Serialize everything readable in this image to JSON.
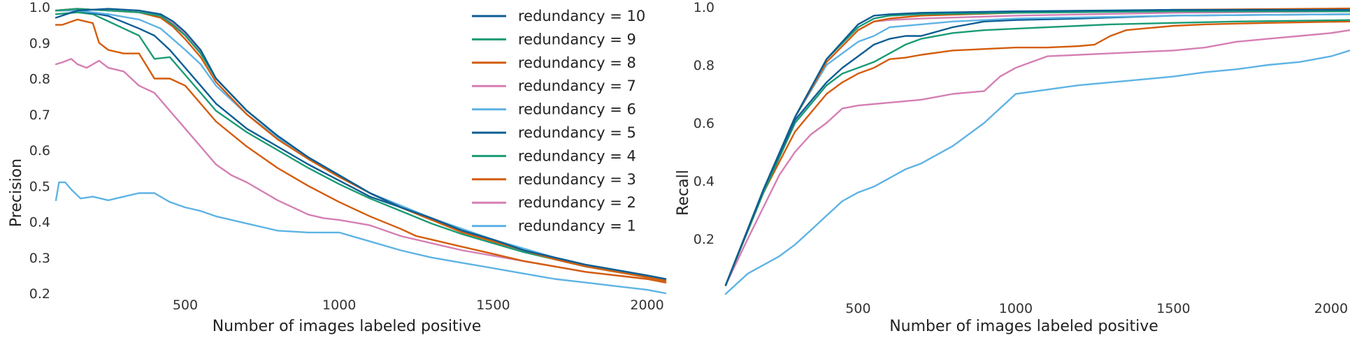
{
  "chart_data": [
    {
      "type": "line",
      "xlabel": "Number of images labeled positive",
      "ylabel": "Precision",
      "xlim": [
        80,
        2060
      ],
      "ylim": [
        0.2,
        1.0
      ],
      "xticks": [
        500,
        1000,
        1500,
        2000
      ],
      "yticks": [
        0.2,
        0.3,
        0.4,
        0.5,
        0.6,
        0.7,
        0.8,
        0.9,
        1.0
      ],
      "grid": false,
      "legend_position": "top-right",
      "series": [
        {
          "name": "redundancy = 10",
          "color": "#0b5d94",
          "x": [
            80,
            150,
            250,
            350,
            420,
            460,
            500,
            550,
            600,
            700,
            800,
            900,
            1000,
            1100,
            1200,
            1300,
            1400,
            1500,
            1600,
            1700,
            1800,
            1900,
            2000,
            2060
          ],
          "y": [
            0.97,
            0.99,
            0.995,
            0.99,
            0.98,
            0.96,
            0.93,
            0.88,
            0.8,
            0.71,
            0.64,
            0.58,
            0.53,
            0.48,
            0.44,
            0.41,
            0.375,
            0.35,
            0.32,
            0.3,
            0.28,
            0.265,
            0.25,
            0.24
          ]
        },
        {
          "name": "redundancy = 9",
          "color": "#1a9b74",
          "x": [
            80,
            150,
            250,
            350,
            420,
            460,
            500,
            550,
            600,
            700,
            800,
            900,
            1000,
            1100,
            1200,
            1300,
            1400,
            1500,
            1600,
            1700,
            1800,
            1900,
            2000,
            2060
          ],
          "y": [
            0.99,
            0.995,
            0.99,
            0.985,
            0.975,
            0.95,
            0.92,
            0.87,
            0.8,
            0.71,
            0.64,
            0.58,
            0.53,
            0.48,
            0.44,
            0.41,
            0.375,
            0.35,
            0.32,
            0.3,
            0.28,
            0.265,
            0.25,
            0.24
          ]
        },
        {
          "name": "redundancy = 8",
          "color": "#d45c0a",
          "x": [
            80,
            150,
            250,
            350,
            420,
            460,
            500,
            550,
            600,
            700,
            800,
            900,
            1000,
            1100,
            1200,
            1300,
            1400,
            1500,
            1600,
            1700,
            1800,
            1900,
            2000,
            2060
          ],
          "y": [
            0.99,
            0.995,
            0.99,
            0.985,
            0.97,
            0.945,
            0.91,
            0.86,
            0.79,
            0.7,
            0.63,
            0.575,
            0.525,
            0.48,
            0.44,
            0.405,
            0.37,
            0.345,
            0.32,
            0.295,
            0.275,
            0.26,
            0.245,
            0.235
          ]
        },
        {
          "name": "redundancy = 7",
          "color": "#d57fb4",
          "x": [
            80,
            150,
            250,
            350,
            420,
            460,
            500,
            550,
            600,
            700,
            800,
            900,
            1000,
            1100,
            1200,
            1300,
            1400,
            1500,
            1600,
            1700,
            1800,
            1900,
            2000,
            2060
          ],
          "y": [
            0.99,
            0.995,
            0.99,
            0.985,
            0.975,
            0.955,
            0.925,
            0.875,
            0.8,
            0.71,
            0.64,
            0.58,
            0.53,
            0.48,
            0.44,
            0.41,
            0.375,
            0.35,
            0.32,
            0.3,
            0.28,
            0.265,
            0.25,
            0.24
          ]
        },
        {
          "name": "redundancy = 6",
          "color": "#5eb3e4",
          "x": [
            80,
            150,
            250,
            350,
            420,
            460,
            500,
            550,
            600,
            700,
            800,
            900,
            1000,
            1100,
            1200,
            1300,
            1400,
            1500,
            1600,
            1700,
            1800,
            1900,
            2000,
            2060
          ],
          "y": [
            0.99,
            0.99,
            0.98,
            0.965,
            0.94,
            0.91,
            0.88,
            0.84,
            0.78,
            0.7,
            0.635,
            0.58,
            0.53,
            0.48,
            0.445,
            0.41,
            0.38,
            0.35,
            0.325,
            0.3,
            0.28,
            0.265,
            0.25,
            0.24
          ]
        },
        {
          "name": "redundancy = 5",
          "color": "#0b5d94",
          "x": [
            80,
            150,
            250,
            350,
            400,
            450,
            500,
            550,
            600,
            700,
            800,
            900,
            1000,
            1100,
            1200,
            1300,
            1400,
            1500,
            1600,
            1700,
            1800,
            1900,
            2000,
            2060
          ],
          "y": [
            0.99,
            0.99,
            0.975,
            0.94,
            0.92,
            0.88,
            0.83,
            0.78,
            0.73,
            0.66,
            0.61,
            0.56,
            0.515,
            0.47,
            0.44,
            0.405,
            0.375,
            0.345,
            0.32,
            0.3,
            0.28,
            0.265,
            0.25,
            0.24
          ]
        },
        {
          "name": "redundancy = 4",
          "color": "#1a9b74",
          "x": [
            80,
            150,
            200,
            250,
            300,
            350,
            400,
            450,
            500,
            550,
            600,
            700,
            800,
            900,
            1000,
            1100,
            1200,
            1300,
            1400,
            1500,
            1600,
            1700,
            1800,
            1900,
            2000,
            2060
          ],
          "y": [
            0.98,
            0.985,
            0.98,
            0.96,
            0.94,
            0.92,
            0.855,
            0.86,
            0.81,
            0.76,
            0.71,
            0.65,
            0.6,
            0.55,
            0.505,
            0.465,
            0.43,
            0.395,
            0.365,
            0.34,
            0.315,
            0.295,
            0.275,
            0.26,
            0.245,
            0.235
          ]
        },
        {
          "name": "redundancy = 3",
          "color": "#d45c0a",
          "x": [
            80,
            100,
            150,
            200,
            220,
            250,
            300,
            350,
            400,
            450,
            500,
            550,
            600,
            700,
            800,
            900,
            1000,
            1100,
            1200,
            1250,
            1300,
            1400,
            1500,
            1600,
            1700,
            1800,
            1900,
            2000,
            2060
          ],
          "y": [
            0.95,
            0.95,
            0.965,
            0.955,
            0.9,
            0.88,
            0.87,
            0.87,
            0.8,
            0.8,
            0.78,
            0.73,
            0.68,
            0.61,
            0.55,
            0.5,
            0.455,
            0.415,
            0.38,
            0.36,
            0.35,
            0.33,
            0.31,
            0.29,
            0.275,
            0.26,
            0.25,
            0.24,
            0.23
          ]
        },
        {
          "name": "redundancy = 2",
          "color": "#d57fb4",
          "x": [
            80,
            100,
            130,
            150,
            180,
            220,
            250,
            300,
            350,
            400,
            450,
            500,
            550,
            600,
            650,
            700,
            800,
            900,
            950,
            1000,
            1100,
            1200,
            1300,
            1400,
            1500,
            1600,
            1700,
            1800,
            1900,
            2000,
            2060
          ],
          "y": [
            0.84,
            0.845,
            0.855,
            0.84,
            0.83,
            0.85,
            0.83,
            0.82,
            0.78,
            0.76,
            0.71,
            0.66,
            0.61,
            0.56,
            0.53,
            0.51,
            0.46,
            0.42,
            0.41,
            0.405,
            0.39,
            0.36,
            0.34,
            0.32,
            0.305,
            0.29,
            0.275,
            0.26,
            0.25,
            0.24,
            0.23
          ]
        },
        {
          "name": "redundancy = 1",
          "color": "#5eb3e4",
          "x": [
            80,
            90,
            110,
            130,
            160,
            200,
            250,
            300,
            350,
            400,
            450,
            500,
            550,
            600,
            700,
            800,
            900,
            1000,
            1100,
            1200,
            1300,
            1400,
            1500,
            1600,
            1700,
            1800,
            1900,
            2000,
            2060
          ],
          "y": [
            0.46,
            0.51,
            0.51,
            0.49,
            0.465,
            0.47,
            0.46,
            0.47,
            0.48,
            0.48,
            0.455,
            0.44,
            0.43,
            0.415,
            0.395,
            0.375,
            0.37,
            0.37,
            0.345,
            0.32,
            0.3,
            0.285,
            0.27,
            0.255,
            0.24,
            0.23,
            0.22,
            0.21,
            0.2
          ]
        }
      ]
    },
    {
      "type": "line",
      "xlabel": "Number of images labeled positive",
      "ylabel": "Recall",
      "xlim": [
        80,
        2060
      ],
      "ylim": [
        0.0,
        1.0
      ],
      "xticks": [
        500,
        1000,
        1500,
        2000
      ],
      "yticks": [
        0.2,
        0.4,
        0.6,
        0.8,
        1.0
      ],
      "grid": false,
      "series": [
        {
          "name": "redundancy = 10",
          "color": "#0b5d94",
          "x": [
            80,
            200,
            300,
            400,
            500,
            550,
            600,
            700,
            1000,
            1500,
            2060
          ],
          "y": [
            0.04,
            0.37,
            0.62,
            0.82,
            0.94,
            0.97,
            0.975,
            0.98,
            0.985,
            0.99,
            0.99
          ]
        },
        {
          "name": "redundancy = 9",
          "color": "#1a9b74",
          "x": [
            80,
            200,
            300,
            400,
            500,
            550,
            600,
            700,
            1000,
            1500,
            2060
          ],
          "y": [
            0.04,
            0.37,
            0.62,
            0.82,
            0.93,
            0.96,
            0.97,
            0.975,
            0.98,
            0.985,
            0.985
          ]
        },
        {
          "name": "redundancy = 8",
          "color": "#d45c0a",
          "x": [
            80,
            200,
            300,
            400,
            500,
            550,
            600,
            700,
            1000,
            1500,
            2060
          ],
          "y": [
            0.04,
            0.37,
            0.62,
            0.81,
            0.92,
            0.95,
            0.96,
            0.97,
            0.98,
            0.99,
            0.995
          ]
        },
        {
          "name": "redundancy = 7",
          "color": "#d57fb4",
          "x": [
            80,
            200,
            300,
            400,
            500,
            550,
            600,
            700,
            1000,
            1500,
            2060
          ],
          "y": [
            0.04,
            0.37,
            0.62,
            0.81,
            0.92,
            0.95,
            0.955,
            0.96,
            0.97,
            0.98,
            0.985
          ]
        },
        {
          "name": "redundancy = 6",
          "color": "#5eb3e4",
          "x": [
            80,
            200,
            300,
            400,
            500,
            550,
            600,
            700,
            800,
            1000,
            1500,
            2060
          ],
          "y": [
            0.04,
            0.37,
            0.62,
            0.8,
            0.88,
            0.9,
            0.93,
            0.94,
            0.95,
            0.96,
            0.97,
            0.975
          ]
        },
        {
          "name": "redundancy = 5",
          "color": "#0b5d94",
          "x": [
            80,
            200,
            300,
            400,
            450,
            500,
            550,
            600,
            650,
            700,
            800,
            900,
            1000,
            1200,
            1500,
            2060
          ],
          "y": [
            0.04,
            0.37,
            0.61,
            0.74,
            0.79,
            0.83,
            0.87,
            0.89,
            0.9,
            0.9,
            0.93,
            0.95,
            0.955,
            0.96,
            0.97,
            0.975
          ]
        },
        {
          "name": "redundancy = 4",
          "color": "#1a9b74",
          "x": [
            80,
            200,
            300,
            400,
            450,
            500,
            550,
            600,
            650,
            700,
            800,
            900,
            1000,
            1100,
            1200,
            1300,
            1500,
            1700,
            2060
          ],
          "y": [
            0.04,
            0.36,
            0.6,
            0.73,
            0.77,
            0.79,
            0.81,
            0.84,
            0.87,
            0.89,
            0.91,
            0.92,
            0.925,
            0.93,
            0.935,
            0.94,
            0.945,
            0.95,
            0.955
          ]
        },
        {
          "name": "redundancy = 3",
          "color": "#d45c0a",
          "x": [
            80,
            200,
            300,
            400,
            450,
            500,
            550,
            600,
            650,
            700,
            800,
            900,
            1000,
            1100,
            1200,
            1250,
            1300,
            1350,
            1400,
            1500,
            1600,
            1800,
            2060
          ],
          "y": [
            0.04,
            0.36,
            0.57,
            0.7,
            0.74,
            0.77,
            0.79,
            0.82,
            0.825,
            0.835,
            0.85,
            0.855,
            0.86,
            0.86,
            0.865,
            0.87,
            0.9,
            0.92,
            0.925,
            0.935,
            0.94,
            0.945,
            0.95
          ]
        },
        {
          "name": "redundancy = 2",
          "color": "#d57fb4",
          "x": [
            80,
            150,
            200,
            250,
            300,
            350,
            400,
            450,
            500,
            550,
            600,
            700,
            750,
            800,
            850,
            900,
            950,
            1000,
            1050,
            1100,
            1200,
            1300,
            1400,
            1500,
            1600,
            1700,
            1800,
            1900,
            2000,
            2060
          ],
          "y": [
            0.04,
            0.2,
            0.31,
            0.42,
            0.5,
            0.56,
            0.6,
            0.65,
            0.66,
            0.665,
            0.67,
            0.68,
            0.69,
            0.7,
            0.705,
            0.71,
            0.76,
            0.79,
            0.81,
            0.83,
            0.835,
            0.84,
            0.845,
            0.85,
            0.86,
            0.88,
            0.89,
            0.9,
            0.91,
            0.92
          ]
        },
        {
          "name": "redundancy = 1",
          "color": "#5eb3e4",
          "x": [
            80,
            150,
            200,
            250,
            300,
            350,
            400,
            450,
            500,
            550,
            600,
            650,
            700,
            800,
            900,
            1000,
            1100,
            1200,
            1300,
            1400,
            1500,
            1600,
            1700,
            1800,
            1900,
            2000,
            2060
          ],
          "y": [
            0.01,
            0.08,
            0.11,
            0.14,
            0.18,
            0.23,
            0.28,
            0.33,
            0.36,
            0.38,
            0.41,
            0.44,
            0.46,
            0.52,
            0.6,
            0.7,
            0.715,
            0.73,
            0.74,
            0.75,
            0.76,
            0.775,
            0.785,
            0.8,
            0.81,
            0.83,
            0.85
          ]
        }
      ]
    }
  ]
}
